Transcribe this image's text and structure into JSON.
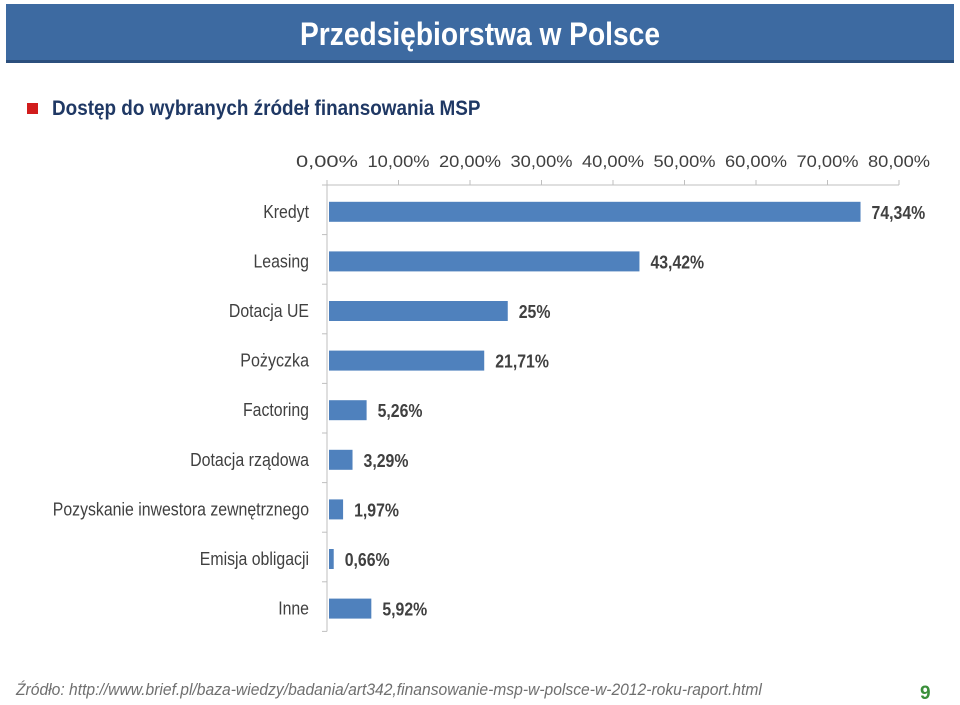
{
  "slide": {
    "title": "Przedsiębiorstwa w Polsce",
    "subtitle": "Dostęp do wybranych źródeł finansowania MSP",
    "source": "Źródło: http://www.brief.pl/baza-wiedzy/badania/art342,finansowanie-msp-w-polsce-w-2012-roku-raport.html",
    "page_number": "9"
  },
  "colors": {
    "title_bar": "#3d6aa1",
    "bar": "#4f81bd",
    "bullet": "#d11c1c",
    "page_number": "#3a8f3a"
  },
  "chart_data": {
    "type": "bar",
    "orientation": "horizontal",
    "categories": [
      "Kredyt",
      "Leasing",
      "Dotacja UE",
      "Pożyczka",
      "Factoring",
      "Dotacja rządowa",
      "Pozyskanie inwestora zewnętrznego",
      "Emisja obligacji",
      "Inne"
    ],
    "values": [
      74.34,
      43.42,
      25,
      21.71,
      5.26,
      3.29,
      1.97,
      0.66,
      5.92
    ],
    "data_labels": [
      "74,34%",
      "43,42%",
      "25%",
      "21,71%",
      "5,26%",
      "3,29%",
      "1,97%",
      "0,66%",
      "5,92%"
    ],
    "x_ticks": [
      "0,00%",
      "10,00%",
      "20,00%",
      "30,00%",
      "40,00%",
      "50,00%",
      "60,00%",
      "70,00%",
      "80,00%"
    ],
    "xlim": [
      0,
      80
    ],
    "axis_position": "top",
    "grid": false,
    "legend": "none"
  }
}
